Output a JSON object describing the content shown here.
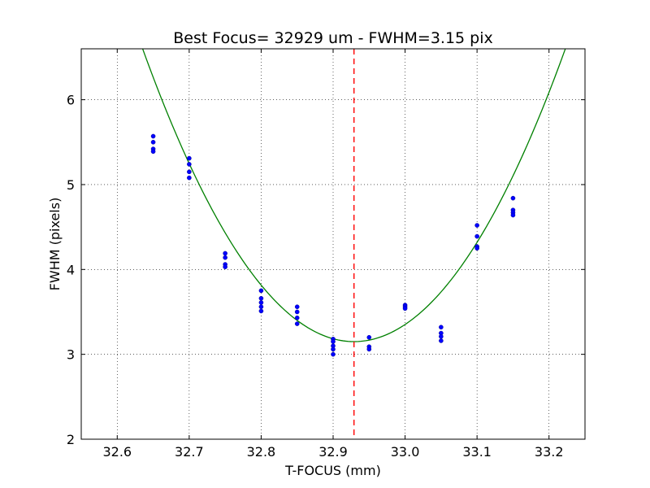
{
  "chart_data": {
    "type": "scatter",
    "title": "Best Focus= 32929 um - FWHM=3.15 pix",
    "xlabel": "T-FOCUS (mm)",
    "ylabel": "FWHM (pixels)",
    "xlim": [
      32.55,
      33.25
    ],
    "ylim": [
      2,
      6.6
    ],
    "xticks": [
      "32.6",
      "32.7",
      "32.8",
      "32.9",
      "33.0",
      "33.1",
      "33.2"
    ],
    "yticks": [
      "2",
      "3",
      "4",
      "5",
      "6"
    ],
    "grid": true,
    "series": [
      {
        "type": "scatter",
        "color": "#0000ff",
        "points": [
          [
            32.65,
            5.57
          ],
          [
            32.65,
            5.5
          ],
          [
            32.65,
            5.42
          ],
          [
            32.65,
            5.39
          ],
          [
            32.7,
            5.31
          ],
          [
            32.7,
            5.24
          ],
          [
            32.7,
            5.15
          ],
          [
            32.7,
            5.08
          ],
          [
            32.75,
            4.19
          ],
          [
            32.75,
            4.14
          ],
          [
            32.75,
            4.06
          ],
          [
            32.75,
            4.03
          ],
          [
            32.8,
            3.75
          ],
          [
            32.8,
            3.66
          ],
          [
            32.8,
            3.61
          ],
          [
            32.8,
            3.56
          ],
          [
            32.8,
            3.51
          ],
          [
            32.85,
            3.56
          ],
          [
            32.85,
            3.5
          ],
          [
            32.85,
            3.43
          ],
          [
            32.85,
            3.36
          ],
          [
            32.9,
            3.18
          ],
          [
            32.9,
            3.15
          ],
          [
            32.9,
            3.1
          ],
          [
            32.9,
            3.06
          ],
          [
            32.9,
            3.0
          ],
          [
            32.95,
            3.2
          ],
          [
            32.95,
            3.09
          ],
          [
            32.95,
            3.06
          ],
          [
            33.0,
            3.58
          ],
          [
            33.0,
            3.56
          ],
          [
            33.0,
            3.54
          ],
          [
            33.05,
            3.32
          ],
          [
            33.05,
            3.25
          ],
          [
            33.05,
            3.21
          ],
          [
            33.05,
            3.16
          ],
          [
            33.1,
            4.52
          ],
          [
            33.1,
            4.39
          ],
          [
            33.1,
            4.27
          ],
          [
            33.1,
            4.25
          ],
          [
            33.15,
            4.84
          ],
          [
            33.15,
            4.7
          ],
          [
            33.15,
            4.67
          ],
          [
            33.15,
            4.64
          ]
        ]
      },
      {
        "type": "line",
        "color": "#008000",
        "fit": {
          "x0": 32.929,
          "ymin": 3.15,
          "curvature": 40
        }
      },
      {
        "type": "vline",
        "color": "#ff0000",
        "x": 32.929,
        "style": "dashed"
      }
    ]
  }
}
